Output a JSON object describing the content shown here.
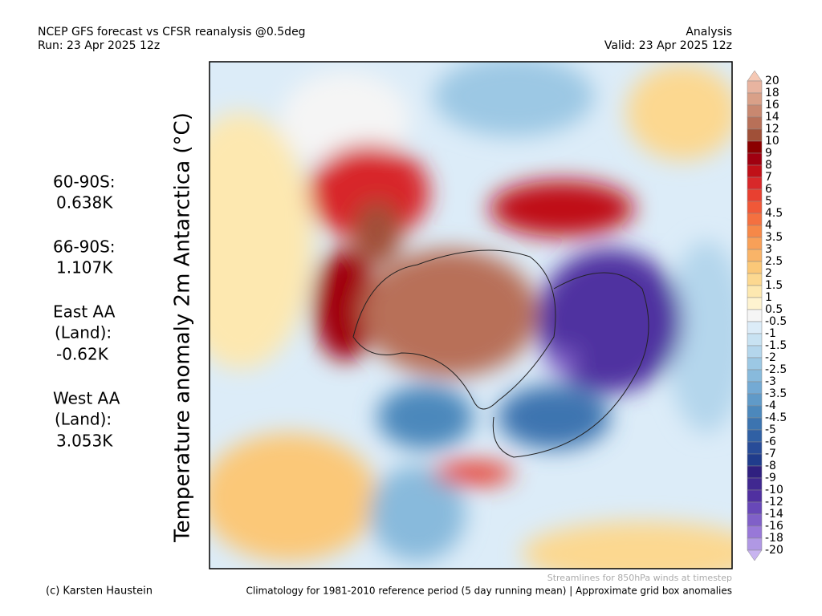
{
  "header": {
    "title_left": "NCEP GFS forecast vs CFSR reanalysis @0.5deg",
    "run": "Run: 23 Apr 2025 12z",
    "title_right": "Analysis",
    "valid": "Valid: 23 Apr 2025 12z"
  },
  "map_title": "Temperature anomaly 2m Antarctica (°C)",
  "stats": [
    {
      "label": "60-90S:",
      "value": "0.638K"
    },
    {
      "label": "66-90S:",
      "value": "1.107K"
    },
    {
      "label": "East AA",
      "sub": "(Land):",
      "value": "-0.62K"
    },
    {
      "label": "West AA",
      "sub": "(Land):",
      "value": "3.053K"
    }
  ],
  "colorbar": {
    "labels": [
      20,
      18,
      16,
      14,
      12,
      10,
      9,
      8,
      7,
      6,
      5,
      4.5,
      4,
      3.5,
      3,
      2.5,
      2,
      1.5,
      1,
      0.5,
      -0.5,
      -1,
      -1.5,
      -2,
      -2.5,
      -3,
      -3.5,
      -4,
      -4.5,
      -5,
      -6,
      -7,
      -8,
      -9,
      -10,
      -12,
      -14,
      -16,
      -18,
      -20
    ],
    "colors": [
      "#f5c8b4",
      "#e8b4a0",
      "#d9a088",
      "#c88870",
      "#b87058",
      "#a05038",
      "#8b0000",
      "#a00010",
      "#c01018",
      "#d8282a",
      "#e84030",
      "#f05838",
      "#f47040",
      "#f68848",
      "#f8a058",
      "#f9b468",
      "#fbc878",
      "#fcd890",
      "#fde8b0",
      "#fef3d0",
      "#f5f5f5",
      "#dcecf8",
      "#c8e2f2",
      "#b4d6ec",
      "#9cc8e4",
      "#88badc",
      "#74aad4",
      "#609ac8",
      "#4c88bc",
      "#3c74b0",
      "#3060a4",
      "#284c98",
      "#203c8c",
      "#302080",
      "#402890",
      "#5030a0",
      "#6848b8",
      "#8060c8",
      "#9878d8",
      "#b098e4",
      "#c8b4f0"
    ]
  },
  "footer": {
    "streamlines": "Streamlines for 850hPa winds at timestep",
    "credit": "(c) Karsten Haustein",
    "climatology": "Climatology for 1981-2010 reference period (5 day running mean) | Approximate grid box anomalies"
  }
}
